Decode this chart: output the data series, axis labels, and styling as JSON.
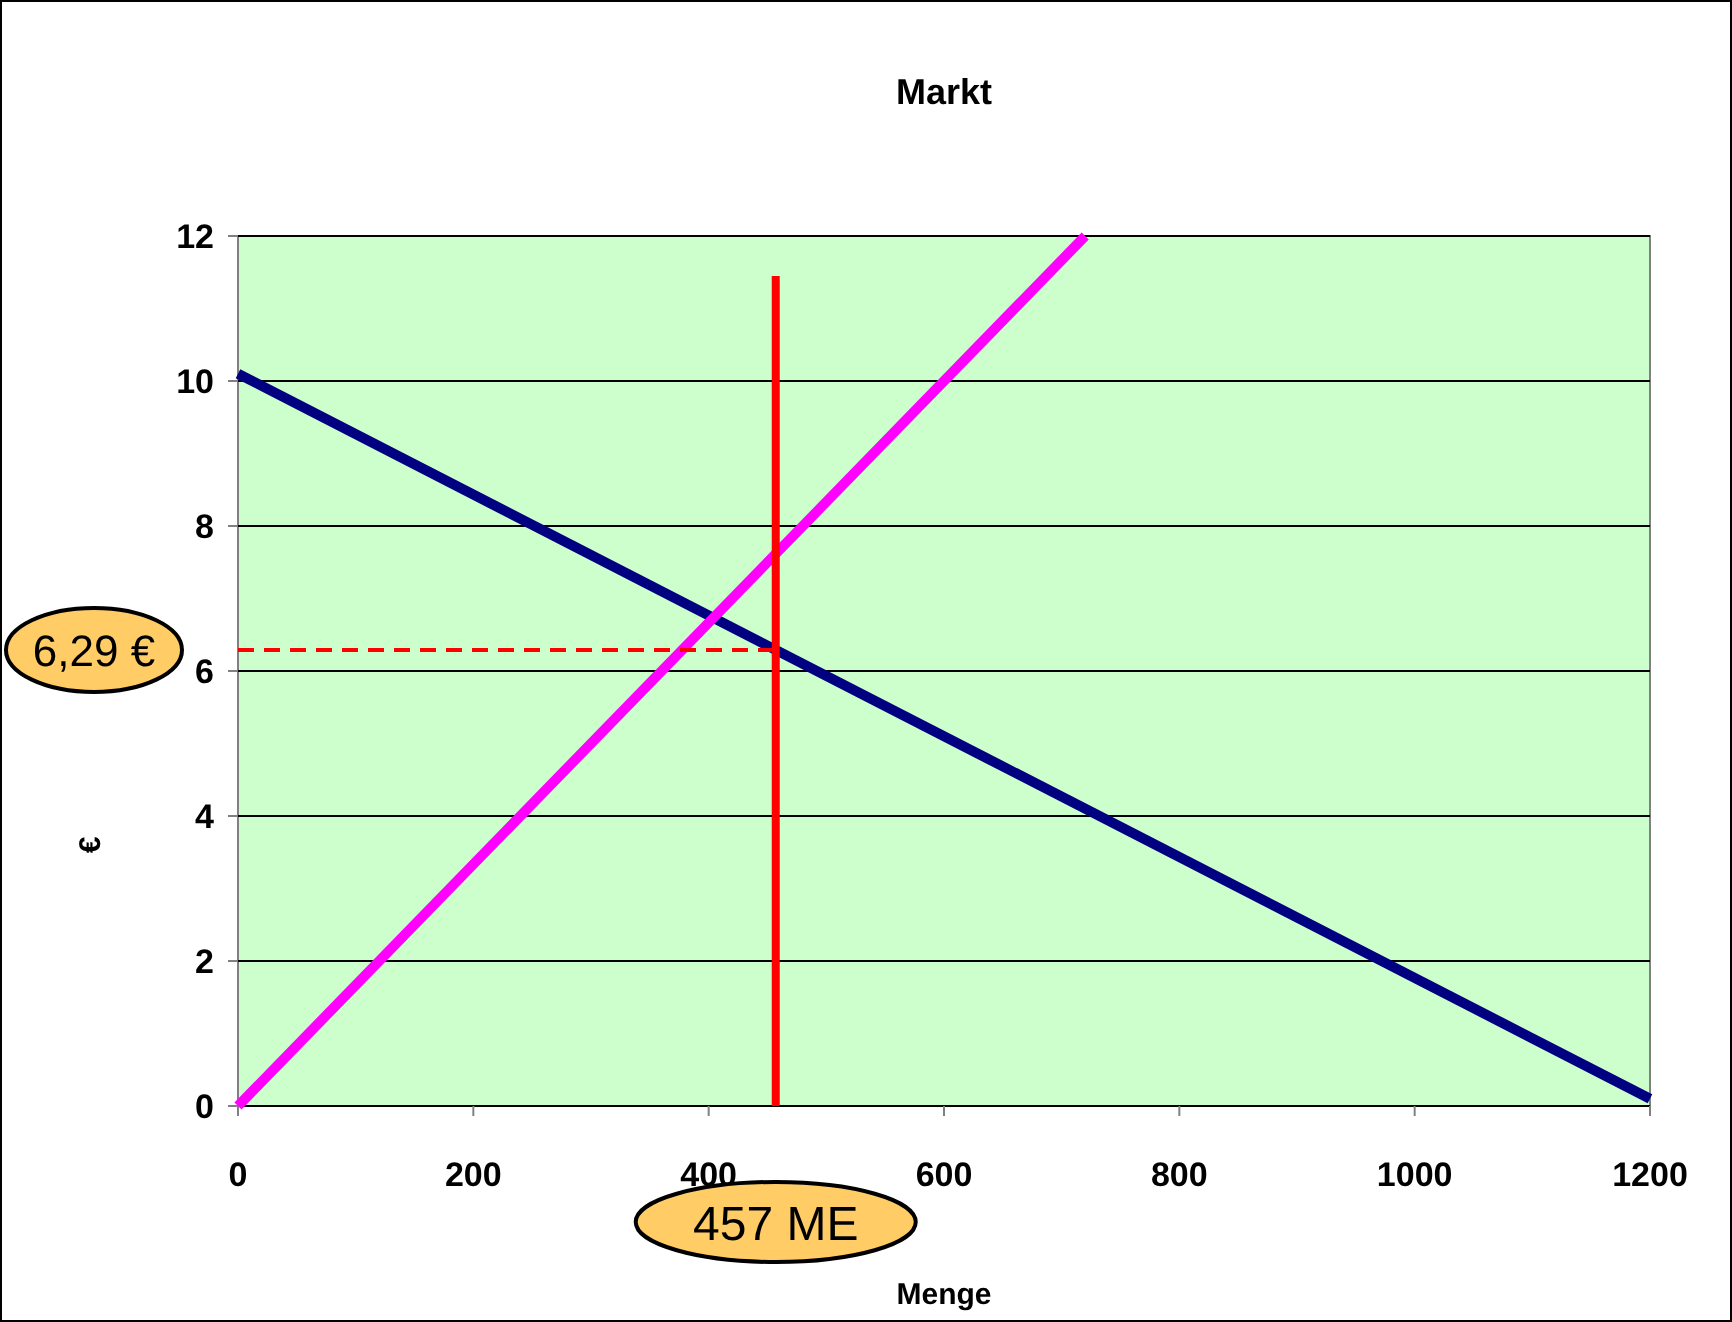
{
  "chart_data": {
    "type": "line",
    "title": "Markt",
    "xlabel": "Menge",
    "ylabel": "€",
    "xlim": [
      0,
      1200
    ],
    "xticks": [
      0,
      200,
      400,
      600,
      800,
      1000,
      1200
    ],
    "ylim": [
      0,
      12
    ],
    "yticks": [
      0,
      2,
      4,
      6,
      8,
      10,
      12
    ],
    "grid": "y",
    "series": [
      {
        "color": "#000080",
        "x": [
          0,
          1200
        ],
        "values": [
          10.1,
          0.1
        ]
      },
      {
        "color": "#ff00ff",
        "x": [
          0,
          720
        ],
        "values": [
          0,
          12
        ]
      }
    ],
    "ref_lines": [
      {
        "axis": "x",
        "value": 457,
        "label": "457 ME",
        "color": "#ff0000",
        "line_style": "solid"
      },
      {
        "axis": "y",
        "value": 6.29,
        "label": "6,29 €",
        "color": "#ff0000",
        "line_style": "dashed"
      }
    ]
  }
}
